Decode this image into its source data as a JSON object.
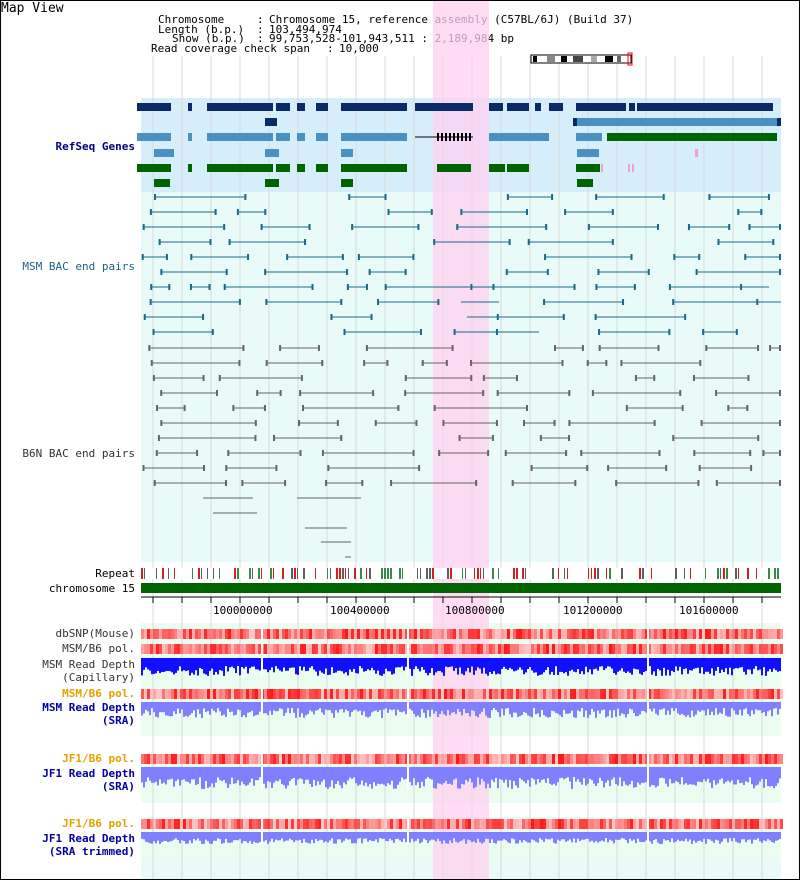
{
  "title": "Map View",
  "info": {
    "chromosome_key": "Chromosome",
    "chromosome_val": "Chromosome 15, reference assembly (C57BL/6J) (Build 37)",
    "length_key": "Length (b.p.)",
    "length_val": "103,494,974",
    "show_key": "Show (b.p.)",
    "show_val": "99,753,528-101,943,511 : 2,189,984 bp",
    "coverage_key": "Read coverage check span",
    "coverage_val": "10,000"
  },
  "labels": {
    "refseq": "RefSeq Genes",
    "msm_bac": "MSM BAC end pairs",
    "b6n_bac": "B6N BAC end pairs",
    "repeat": "Repeat",
    "chromosome": "chromosome 15",
    "dbsnp": "dbSNP(Mouse)",
    "msm_b6_pol": "MSM/B6 pol.",
    "msm_read_depth_cap1": "MSM Read Depth",
    "msm_read_depth_cap2": "(Capillary)",
    "msm_b6_pol2": "MSM/B6 pol.",
    "msm_read_depth_sra1": "MSM Read Depth",
    "msm_read_depth_sra2": "(SRA)",
    "jf1_b6_pol": "JF1/B6 pol.",
    "jf1_read_depth_sra1": "JF1 Read Depth",
    "jf1_read_depth_sra2": "(SRA)",
    "jf1_b6_pol2": "JF1/B6 pol.",
    "jf1_read_depth_trim1": "JF1 Read Depth",
    "jf1_read_depth_trim2": "(SRA trimmed)"
  },
  "axis_ticks": [
    "100000000",
    "100400000",
    "100800000",
    "101200000",
    "101600000"
  ],
  "colors": {
    "refseq_dark": "#0a2a6a",
    "refseq_light": "#4a90c0",
    "refseq_green": "#006400",
    "highlight": "#ffd0f0",
    "bac_msm": "#1a6a8a",
    "bac_b6n": "#666666",
    "chromosome_bar": "#006400",
    "depth_cap": "#1010ff",
    "depth_sra": "#8080ff",
    "pol_red": "#ff4040"
  }
}
